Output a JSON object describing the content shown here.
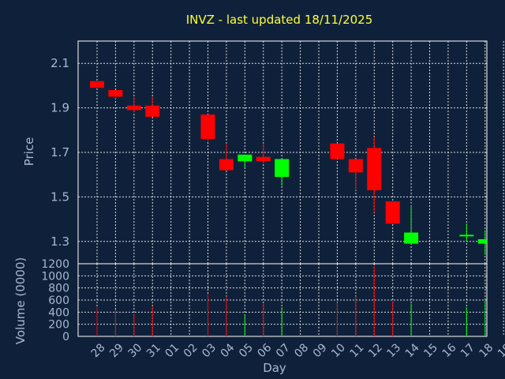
{
  "chart_data": {
    "type": "candlestick",
    "title": "INVZ - last updated 18/11/2025",
    "xlabel": "Day",
    "ylabel_price": "Price",
    "ylabel_volume": "Volume (0000)",
    "x_ticks": [
      "28",
      "29",
      "30",
      "31",
      "01",
      "02",
      "03",
      "04",
      "05",
      "06",
      "07",
      "08",
      "09",
      "10",
      "11",
      "12",
      "13",
      "14",
      "15",
      "16",
      "17",
      "18",
      "19"
    ],
    "price_ticks": [
      "1.3",
      "1.5",
      "1.7",
      "1.9",
      "2.1"
    ],
    "price_ylim": [
      1.2,
      2.2
    ],
    "volume_ticks": [
      "0",
      "200",
      "400",
      "600",
      "800",
      "1000",
      "1200"
    ],
    "volume_ylim": [
      0,
      1200
    ],
    "grid": true,
    "colors": {
      "up": "#00ff00",
      "down": "#ff0000",
      "title": "#ffff33",
      "text": "#aab8d2",
      "background": "#0f213a"
    },
    "candles": [
      {
        "day": "28",
        "open": 2.02,
        "high": 2.02,
        "low": 1.99,
        "close": 1.99,
        "volume": 480
      },
      {
        "day": "29",
        "open": 1.98,
        "high": 1.98,
        "low": 1.94,
        "close": 1.95,
        "volume": 440
      },
      {
        "day": "30",
        "open": 1.91,
        "high": 1.95,
        "low": 1.88,
        "close": 1.89,
        "volume": 370
      },
      {
        "day": "31",
        "open": 1.91,
        "high": 1.95,
        "low": 1.86,
        "close": 1.86,
        "volume": 500
      },
      {
        "day": "03",
        "open": 1.87,
        "high": 1.87,
        "low": 1.75,
        "close": 1.76,
        "volume": 700
      },
      {
        "day": "04",
        "open": 1.67,
        "high": 1.74,
        "low": 1.62,
        "close": 1.62,
        "volume": 660
      },
      {
        "day": "05",
        "open": 1.66,
        "high": 1.69,
        "low": 1.63,
        "close": 1.69,
        "volume": 360
      },
      {
        "day": "06",
        "open": 1.68,
        "high": 1.74,
        "low": 1.65,
        "close": 1.66,
        "volume": 540
      },
      {
        "day": "07",
        "open": 1.59,
        "high": 1.67,
        "low": 1.55,
        "close": 1.67,
        "volume": 480
      },
      {
        "day": "10",
        "open": 1.74,
        "high": 1.74,
        "low": 1.67,
        "close": 1.67,
        "volume": 560
      },
      {
        "day": "11",
        "open": 1.67,
        "high": 1.67,
        "low": 1.53,
        "close": 1.61,
        "volume": 660
      },
      {
        "day": "12",
        "open": 1.72,
        "high": 1.77,
        "low": 1.43,
        "close": 1.53,
        "volume": 1160
      },
      {
        "day": "13",
        "open": 1.48,
        "high": 1.48,
        "low": 1.38,
        "close": 1.38,
        "volume": 580
      },
      {
        "day": "14",
        "open": 1.29,
        "high": 1.46,
        "low": 1.29,
        "close": 1.34,
        "volume": 540
      },
      {
        "day": "17",
        "open": 1.33,
        "high": 1.38,
        "low": 1.3,
        "close": 1.33,
        "volume": 480
      },
      {
        "day": "18",
        "open": 1.29,
        "high": 1.35,
        "low": 1.24,
        "close": 1.31,
        "volume": 590
      }
    ]
  }
}
